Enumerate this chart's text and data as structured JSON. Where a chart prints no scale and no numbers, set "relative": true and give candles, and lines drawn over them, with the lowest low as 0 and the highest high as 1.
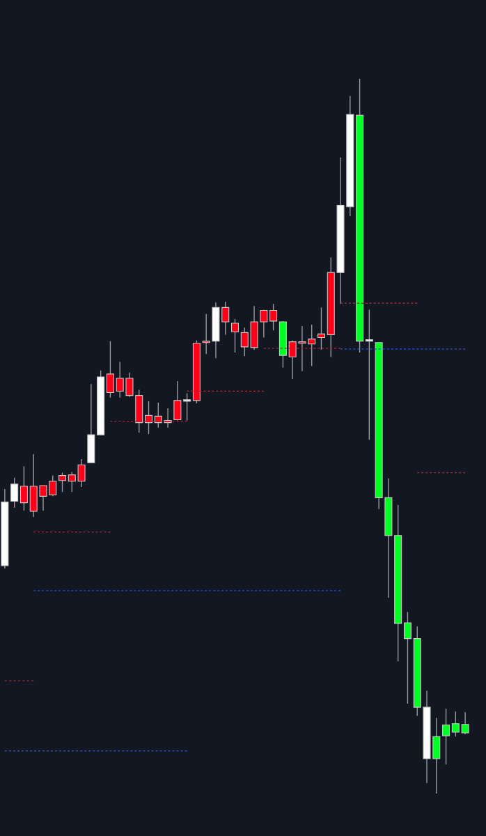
{
  "chart_data": {
    "type": "candlestick",
    "relative": true,
    "tick_labels": false,
    "grid": false,
    "legend": false,
    "categories": [
      null,
      null,
      null,
      null,
      null,
      null,
      null,
      null,
      null,
      null,
      null,
      null,
      null,
      null,
      null,
      null,
      null,
      null,
      null,
      null,
      null,
      null,
      null,
      null,
      null,
      null,
      null,
      null,
      null,
      null,
      null,
      null,
      null,
      null,
      null,
      null,
      null,
      null,
      null,
      null,
      null,
      null,
      null,
      null,
      null,
      null,
      null,
      null,
      null
    ],
    "ohlc": [
      [
        0.319,
        0.426,
        0.315,
        0.408
      ],
      [
        0.409,
        0.442,
        0.4,
        0.433
      ],
      [
        0.407,
        0.458,
        0.396,
        0.43
      ],
      [
        0.395,
        0.475,
        0.387,
        0.43
      ],
      [
        0.416,
        0.431,
        0.396,
        0.431
      ],
      [
        0.418,
        0.445,
        0.416,
        0.437
      ],
      [
        0.438,
        0.449,
        0.422,
        0.445
      ],
      [
        0.437,
        0.45,
        0.422,
        0.446
      ],
      [
        0.437,
        0.468,
        0.429,
        0.46
      ],
      [
        0.463,
        0.573,
        0.463,
        0.502
      ],
      [
        0.502,
        0.592,
        0.502,
        0.583
      ],
      [
        0.561,
        0.633,
        0.554,
        0.587
      ],
      [
        0.563,
        0.604,
        0.554,
        0.581
      ],
      [
        0.557,
        0.589,
        0.555,
        0.581
      ],
      [
        0.519,
        0.565,
        0.505,
        0.557
      ],
      [
        0.519,
        0.549,
        0.503,
        0.529
      ],
      [
        0.519,
        0.547,
        0.512,
        0.528
      ],
      [
        0.519,
        0.539,
        0.512,
        0.522
      ],
      [
        0.523,
        0.577,
        0.522,
        0.55
      ],
      [
        0.549,
        0.56,
        0.522,
        0.55
      ],
      [
        0.55,
        0.634,
        0.546,
        0.63
      ],
      [
        0.631,
        0.671,
        0.615,
        0.633
      ],
      [
        0.633,
        0.687,
        0.609,
        0.68
      ],
      [
        0.66,
        0.688,
        0.642,
        0.68
      ],
      [
        0.646,
        0.664,
        0.617,
        0.658
      ],
      [
        0.625,
        0.652,
        0.612,
        0.645
      ],
      [
        0.624,
        0.682,
        0.621,
        0.66
      ],
      [
        0.66,
        0.677,
        0.638,
        0.676
      ],
      [
        0.661,
        0.685,
        0.648,
        0.676
      ],
      [
        0.66,
        0.661,
        0.596,
        0.613
      ],
      [
        0.611,
        0.634,
        0.58,
        0.632
      ],
      [
        0.63,
        0.654,
        0.591,
        0.632
      ],
      [
        0.629,
        0.656,
        0.598,
        0.636
      ],
      [
        0.638,
        0.68,
        0.621,
        0.643
      ],
      [
        0.642,
        0.75,
        0.611,
        0.729
      ],
      [
        0.729,
        0.89,
        0.685,
        0.823
      ],
      [
        0.821,
        0.976,
        0.808,
        0.95
      ],
      [
        0.949,
        1.0,
        0.617,
        0.633
      ],
      [
        0.633,
        0.677,
        0.495,
        0.633
      ],
      [
        0.631,
        0.631,
        0.398,
        0.414
      ],
      [
        0.414,
        0.441,
        0.274,
        0.361
      ],
      [
        0.361,
        0.404,
        0.185,
        0.238
      ],
      [
        0.239,
        0.254,
        0.126,
        0.217
      ],
      [
        0.217,
        0.234,
        0.109,
        0.121
      ],
      [
        0.049,
        0.144,
        0.015,
        0.121
      ],
      [
        0.08,
        0.106,
        0.0,
        0.049
      ],
      [
        0.096,
        0.119,
        0.041,
        0.081
      ],
      [
        0.098,
        0.115,
        0.08,
        0.086
      ],
      [
        0.097,
        0.114,
        0.083,
        0.085
      ]
    ],
    "colors": [
      "#ffffff",
      "#ffffff",
      "#ff0019",
      "#ff0019",
      "#ff0019",
      "#ff0019",
      "#ff0019",
      "#ff0019",
      "#ff0019",
      "#ffffff",
      "#ffffff",
      "#ff0019",
      "#ff0019",
      "#ff0019",
      "#ff0019",
      "#ff0019",
      "#ff0019",
      "#ff0019",
      "#ff0019",
      "#ffffff",
      "#ff0019",
      "#ff0019",
      "#ffffff",
      "#ff0019",
      "#ff0019",
      "#ff0019",
      "#ff0019",
      "#ff0019",
      "#ff0019",
      "#00ff22",
      "#ff0019",
      "#ff0019",
      "#ff0019",
      "#ff0019",
      "#ff0019",
      "#ffffff",
      "#ffffff",
      "#00ff22",
      "#ffffff",
      "#00ff22",
      "#00ff22",
      "#00ff22",
      "#00ff22",
      "#00ff22",
      "#ffffff",
      "#00ff22",
      "#00ff22",
      "#00ff22",
      "#00ff22"
    ],
    "series": [
      {
        "type": "line",
        "line_style": "dashed",
        "color": "#a02a38",
        "values": [
          null,
          null,
          null,
          null,
          null,
          null,
          null,
          null,
          null,
          null,
          null,
          0.521,
          0.521,
          0.521,
          0.521,
          0.521,
          0.521,
          0.521,
          0.521,
          0.521,
          null,
          null,
          null,
          null,
          null,
          null,
          null,
          null,
          null,
          null,
          null,
          null,
          null,
          null,
          null,
          null,
          null,
          null,
          null,
          null,
          null,
          null,
          null,
          null,
          null,
          null,
          null,
          null,
          null
        ]
      },
      {
        "type": "line",
        "line_style": "dashed",
        "color": "#a02a38",
        "values": [
          null,
          null,
          null,
          null,
          null,
          null,
          null,
          null,
          null,
          null,
          null,
          null,
          null,
          null,
          null,
          null,
          null,
          null,
          null,
          0.563,
          0.563,
          0.563,
          0.563,
          0.563,
          0.563,
          0.563,
          0.563,
          0.563,
          null,
          null,
          null,
          null,
          null,
          null,
          null,
          null,
          null,
          null,
          null,
          null,
          null,
          null,
          null,
          null,
          null,
          null,
          null,
          null,
          null
        ]
      },
      {
        "type": "line",
        "line_style": "dashed",
        "color": "#a02a38",
        "values": [
          null,
          null,
          null,
          null,
          null,
          null,
          null,
          null,
          null,
          null,
          null,
          null,
          null,
          null,
          null,
          null,
          null,
          null,
          null,
          null,
          null,
          null,
          null,
          null,
          null,
          null,
          null,
          0.623,
          0.623,
          0.623,
          0.623,
          0.623,
          0.623,
          0.623,
          0.623,
          0.623,
          null,
          null,
          null,
          null,
          null,
          null,
          null,
          null,
          null,
          null,
          null,
          null,
          null
        ]
      },
      {
        "type": "line",
        "line_style": "dashed",
        "color": "#a02a38",
        "values": [
          null,
          null,
          null,
          null,
          null,
          null,
          null,
          null,
          null,
          null,
          null,
          null,
          null,
          null,
          null,
          null,
          null,
          null,
          null,
          null,
          null,
          null,
          null,
          null,
          null,
          null,
          null,
          null,
          null,
          null,
          null,
          null,
          null,
          null,
          null,
          0.686,
          0.686,
          0.686,
          0.686,
          0.686,
          0.686,
          0.686,
          0.686,
          0.686,
          null,
          null,
          null,
          null,
          null
        ]
      },
      {
        "type": "line",
        "line_style": "dashed",
        "color": "#2a48c8",
        "values": [
          null,
          null,
          null,
          null,
          null,
          null,
          null,
          null,
          null,
          null,
          null,
          null,
          null,
          null,
          null,
          null,
          null,
          null,
          null,
          null,
          null,
          null,
          null,
          null,
          null,
          null,
          null,
          null,
          null,
          null,
          null,
          null,
          null,
          null,
          null,
          0.622,
          0.622,
          0.622,
          0.622,
          0.622,
          0.622,
          0.622,
          0.622,
          0.622,
          0.622,
          0.622,
          0.622,
          0.622,
          0.622
        ]
      },
      {
        "type": "line",
        "line_style": "dashed",
        "color": "#a02a38",
        "values": [
          null,
          null,
          null,
          null,
          null,
          null,
          null,
          null,
          null,
          null,
          null,
          null,
          null,
          null,
          null,
          null,
          null,
          null,
          null,
          null,
          null,
          null,
          null,
          null,
          null,
          null,
          null,
          null,
          null,
          null,
          null,
          null,
          null,
          null,
          null,
          null,
          null,
          null,
          null,
          null,
          null,
          null,
          null,
          0.449,
          0.449,
          0.449,
          0.449,
          0.449,
          0.449
        ]
      },
      {
        "type": "line",
        "line_style": "dashed",
        "color": "#a02a38",
        "values": [
          null,
          null,
          null,
          0.366,
          0.366,
          0.366,
          0.366,
          0.366,
          0.366,
          0.366,
          0.366,
          0.366,
          null,
          null,
          null,
          null,
          null,
          null,
          null,
          null,
          null,
          null,
          null,
          null,
          null,
          null,
          null,
          null,
          null,
          null,
          null,
          null,
          null,
          null,
          null,
          null,
          null,
          null,
          null,
          null,
          null,
          null,
          null,
          null,
          null,
          null,
          null,
          null,
          null
        ]
      },
      {
        "type": "line",
        "line_style": "dashed",
        "color": "#2a48c8",
        "values": [
          null,
          null,
          null,
          0.284,
          0.284,
          0.284,
          0.284,
          0.284,
          0.284,
          0.284,
          0.284,
          0.284,
          0.284,
          0.284,
          0.284,
          0.284,
          0.284,
          0.284,
          0.284,
          0.284,
          0.284,
          0.284,
          0.284,
          0.284,
          0.284,
          0.284,
          0.284,
          0.284,
          0.284,
          0.284,
          0.284,
          0.284,
          0.284,
          0.284,
          0.284,
          0.284,
          null,
          null,
          null,
          null,
          null,
          null,
          null,
          null,
          null,
          null,
          null,
          null,
          null
        ]
      },
      {
        "type": "line",
        "line_style": "dashed",
        "color": "#a02a38",
        "values": [
          0.158,
          0.158,
          0.158,
          0.158,
          null,
          null,
          null,
          null,
          null,
          null,
          null,
          null,
          null,
          null,
          null,
          null,
          null,
          null,
          null,
          null,
          null,
          null,
          null,
          null,
          null,
          null,
          null,
          null,
          null,
          null,
          null,
          null,
          null,
          null,
          null,
          null,
          null,
          null,
          null,
          null,
          null,
          null,
          null,
          null,
          null,
          null,
          null,
          null,
          null
        ]
      },
      {
        "type": "line",
        "line_style": "dashed",
        "color": "#2a48c8",
        "values": [
          0.06,
          0.06,
          0.06,
          0.06,
          0.06,
          0.06,
          0.06,
          0.06,
          0.06,
          0.06,
          0.06,
          0.06,
          0.06,
          0.06,
          0.06,
          0.06,
          0.06,
          0.06,
          0.06,
          0.06,
          null,
          null,
          null,
          null,
          null,
          null,
          null,
          null,
          null,
          null,
          null,
          null,
          null,
          null,
          null,
          null,
          null,
          null,
          null,
          null,
          null,
          null,
          null,
          null,
          null,
          null,
          null,
          null,
          null
        ]
      }
    ]
  }
}
